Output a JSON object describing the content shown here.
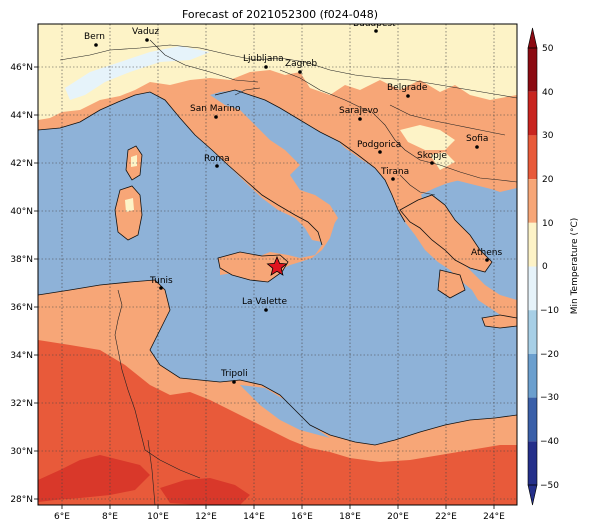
{
  "title": "Forecast of 2021052300 (f024-048)",
  "colorbar": {
    "label": "Min Temperature (°C)",
    "ticks": [
      "50",
      "40",
      "30",
      "20",
      "10",
      "0",
      "−10",
      "−20",
      "−30",
      "−40",
      "−50"
    ],
    "levels": [
      {
        "from": 40,
        "to": 50,
        "color": "#8b0a12"
      },
      {
        "from": 30,
        "to": 40,
        "color": "#c8241f"
      },
      {
        "from": 20,
        "to": 30,
        "color": "#e85a3a"
      },
      {
        "from": 10,
        "to": 20,
        "color": "#f7a677"
      },
      {
        "from": 0,
        "to": 10,
        "color": "#fdf3c7"
      },
      {
        "from": -10,
        "to": 0,
        "color": "#e6f3fa"
      },
      {
        "from": -20,
        "to": -10,
        "color": "#a7cfe6"
      },
      {
        "from": -30,
        "to": -20,
        "color": "#6b9fce"
      },
      {
        "from": -40,
        "to": -30,
        "color": "#3a5fa8"
      },
      {
        "from": -50,
        "to": -40,
        "color": "#242f8a"
      }
    ]
  },
  "axes": {
    "x_ticks": [
      "6°E",
      "8°E",
      "10°E",
      "12°E",
      "14°E",
      "16°E",
      "18°E",
      "20°E",
      "22°E",
      "24°E"
    ],
    "y_ticks": [
      "46°N",
      "44°N",
      "42°N",
      "40°N",
      "38°N",
      "36°N",
      "34°N",
      "32°N",
      "30°N",
      "28°N"
    ]
  },
  "cities": [
    {
      "name": "Bern"
    },
    {
      "name": "Vaduz"
    },
    {
      "name": "Budapest"
    },
    {
      "name": "Ljubljana"
    },
    {
      "name": "Zagreb"
    },
    {
      "name": "Belgrade"
    },
    {
      "name": "San Marino"
    },
    {
      "name": "Sarajevo"
    },
    {
      "name": "Sofia"
    },
    {
      "name": "Podgorica"
    },
    {
      "name": "Skopje"
    },
    {
      "name": "Roma"
    },
    {
      "name": "Tirana"
    },
    {
      "name": "Athens"
    },
    {
      "name": "Tunis"
    },
    {
      "name": "La Valette"
    },
    {
      "name": "Tripoli"
    }
  ],
  "colors": {
    "sea": "#8eb2d8",
    "warm_land": "#f7a677",
    "hot_land": "#e85a3a",
    "very_hot": "#d9382a",
    "cool_land": "#fdf3c7",
    "snow": "#e6f3fa",
    "star": "#e0141e"
  }
}
